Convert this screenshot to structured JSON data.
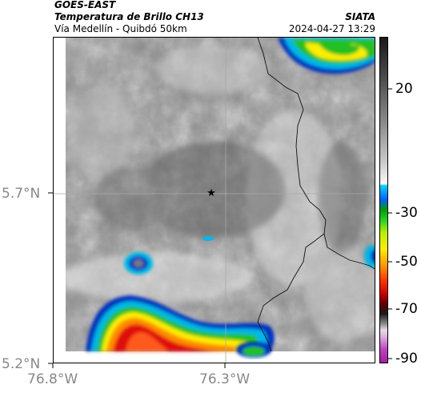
{
  "header": {
    "satellite": "GOES-EAST",
    "product": "Temperatura de Brillo CH13",
    "region": "Vía Medellín - Quibdó 50km",
    "source": "SIATA",
    "timestamp": "2024-04-27 13:29"
  },
  "map": {
    "lat_ticks": [
      "5.7°N",
      "5.2°N"
    ],
    "lon_ticks": [
      "76.8°W",
      "76.3°W"
    ],
    "marker": "star-marker"
  },
  "colorbar": {
    "labels": [
      "20",
      "-30",
      "-50",
      "-70",
      "-90"
    ],
    "colors": {
      "cold_cloud_red": "#e01010",
      "orange": "#ff8a00",
      "yellow": "#ffee00",
      "green": "#22c020",
      "blue": "#0030c0",
      "cyan": "#00b8e8",
      "magenta": "#c040c0"
    }
  }
}
